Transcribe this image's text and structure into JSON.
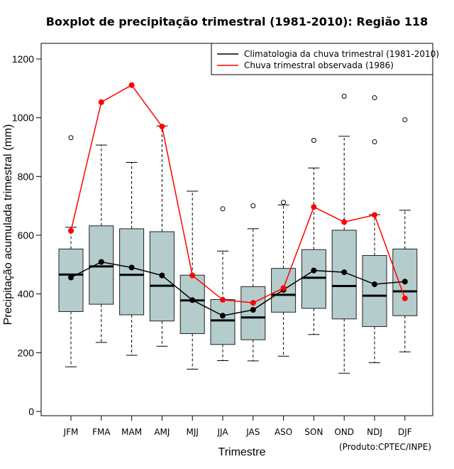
{
  "chart_data": {
    "type": "boxplot",
    "title": "Boxplot de precipitação trimestral (1981-2010): Região 118",
    "xlabel": "Trimestre",
    "ylabel": "Precipitação acumulada trimestral (mm)",
    "credit": "(Produto:CPTEC/INPE)",
    "ylim": [
      -20,
      1250
    ],
    "yticks": [
      0,
      200,
      400,
      600,
      800,
      1000,
      1200
    ],
    "categories": [
      "JFM",
      "FMA",
      "MAM",
      "AMJ",
      "MJJ",
      "JJA",
      "JAS",
      "ASO",
      "SON",
      "OND",
      "NDJ",
      "DJF"
    ],
    "boxes": [
      {
        "whisker_low": 152,
        "q1": 340,
        "median": 466,
        "q3": 553,
        "whisker_high": 627,
        "outliers": [
          932
        ]
      },
      {
        "whisker_low": 235,
        "q1": 365,
        "median": 494,
        "q3": 632,
        "whisker_high": 907,
        "outliers": []
      },
      {
        "whisker_low": 191,
        "q1": 329,
        "median": 465,
        "q3": 622,
        "whisker_high": 848,
        "outliers": []
      },
      {
        "whisker_low": 222,
        "q1": 308,
        "median": 428,
        "q3": 612,
        "whisker_high": 972,
        "outliers": []
      },
      {
        "whisker_low": 144,
        "q1": 265,
        "median": 378,
        "q3": 464,
        "whisker_high": 750,
        "outliers": []
      },
      {
        "whisker_low": 173,
        "q1": 228,
        "median": 310,
        "q3": 381,
        "whisker_high": 546,
        "outliers": [
          690
        ]
      },
      {
        "whisker_low": 172,
        "q1": 244,
        "median": 320,
        "q3": 425,
        "whisker_high": 622,
        "outliers": [
          700
        ]
      },
      {
        "whisker_low": 188,
        "q1": 338,
        "median": 397,
        "q3": 487,
        "whisker_high": 703,
        "outliers": [
          712
        ]
      },
      {
        "whisker_low": 262,
        "q1": 351,
        "median": 455,
        "q3": 551,
        "whisker_high": 829,
        "outliers": [
          923
        ]
      },
      {
        "whisker_low": 130,
        "q1": 315,
        "median": 427,
        "q3": 617,
        "whisker_high": 937,
        "outliers": [
          1073
        ]
      },
      {
        "whisker_low": 166,
        "q1": 289,
        "median": 394,
        "q3": 531,
        "whisker_high": 670,
        "outliers": [
          918,
          1068
        ]
      },
      {
        "whisker_low": 203,
        "q1": 326,
        "median": 409,
        "q3": 553,
        "whisker_high": 685,
        "outliers": [
          993
        ]
      }
    ],
    "series": [
      {
        "name": "Climatologia da chuva trimestral (1981-2010)",
        "color": "#000000",
        "values": [
          456,
          509,
          490,
          463,
          379,
          326,
          346,
          414,
          480,
          474,
          433,
          442
        ]
      },
      {
        "name": "Chuva trimestral observada (1986)",
        "color": "#ff0000",
        "values": [
          615,
          1053,
          1111,
          970,
          463,
          380,
          370,
          420,
          696,
          645,
          669,
          385
        ]
      }
    ],
    "legend_position": "top-right",
    "box_color": "#b4cccc"
  }
}
